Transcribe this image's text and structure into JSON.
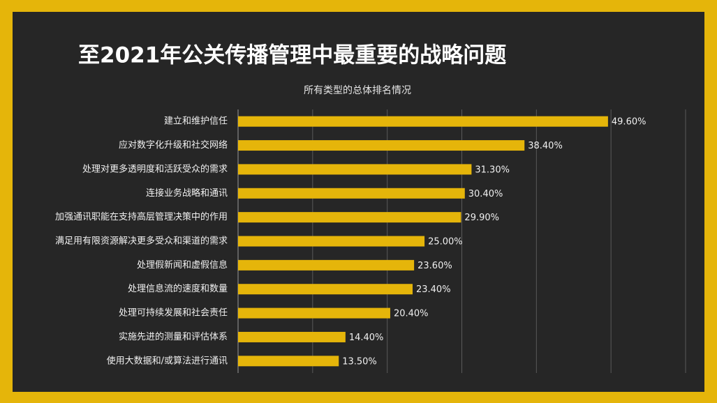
{
  "chart_data": {
    "type": "barh",
    "title": "至2021年公关传播管理中最重要的战略问题",
    "subtitle": "所有类型的总体排名情况",
    "categories": [
      "建立和维护信任",
      "应对数字化升级和社交网络",
      "处理对更多透明度和活跃受众的需求",
      "连接业务战略和通讯",
      "加强通讯职能在支持高层管理决策中的作用",
      "满足用有限资源解决更多受众和渠道的需求",
      "处理假新闻和虚假信息",
      "处理信息流的速度和数量",
      "处理可持续发展和社会责任",
      "实施先进的测量和评估体系",
      "使用大数据和/或算法进行通讯"
    ],
    "values": [
      49.6,
      38.4,
      31.3,
      30.4,
      29.9,
      25.0,
      23.6,
      23.4,
      20.4,
      14.4,
      13.5
    ],
    "value_labels": [
      "49.60%",
      "38.40%",
      "31.30%",
      "30.40%",
      "29.90%",
      "25.00%",
      "23.60%",
      "23.40%",
      "20.40%",
      "14.40%",
      "13.50%"
    ],
    "color": "#e5b50a",
    "xlim": [
      0,
      60
    ],
    "xticks": [
      0,
      10,
      20,
      30,
      40,
      50,
      60
    ],
    "grid": true
  }
}
